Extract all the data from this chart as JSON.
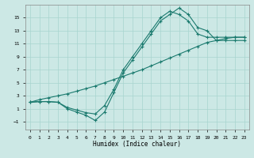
{
  "xlabel": "Humidex (Indice chaleur)",
  "xlim": [
    -0.5,
    23.5
  ],
  "ylim": [
    -2.2,
    17.0
  ],
  "xticks": [
    0,
    1,
    2,
    3,
    4,
    5,
    6,
    7,
    8,
    9,
    10,
    11,
    12,
    13,
    14,
    15,
    16,
    17,
    18,
    19,
    20,
    21,
    22,
    23
  ],
  "yticks": [
    -1,
    1,
    3,
    5,
    7,
    9,
    11,
    13,
    15
  ],
  "bg_color": "#cce8e5",
  "grid_color": "#a8d4cf",
  "line_color": "#1a7a6e",
  "line1_x": [
    0,
    1,
    2,
    3,
    4,
    5,
    6,
    7,
    8,
    9,
    10,
    11,
    12,
    13,
    14,
    15,
    16,
    17,
    18,
    19,
    20,
    21,
    22,
    23
  ],
  "line1_y": [
    2.0,
    2.1,
    2.1,
    2.0,
    1.0,
    0.5,
    0.0,
    -0.8,
    0.5,
    3.5,
    6.5,
    8.5,
    10.5,
    12.5,
    14.5,
    15.5,
    16.5,
    15.5,
    13.5,
    13.0,
    11.5,
    11.5,
    11.5,
    11.5
  ],
  "line2_x": [
    0,
    1,
    2,
    3,
    4,
    5,
    6,
    7,
    8,
    9,
    10,
    11,
    12,
    13,
    14,
    15,
    16,
    17,
    18,
    19,
    20,
    21,
    22,
    23
  ],
  "line2_y": [
    2.0,
    2.1,
    2.1,
    2.0,
    1.2,
    0.8,
    0.4,
    0.2,
    1.5,
    4.0,
    7.0,
    9.0,
    11.0,
    13.0,
    15.0,
    16.0,
    15.5,
    14.5,
    12.5,
    12.0,
    12.0,
    12.0,
    12.0,
    12.0
  ],
  "line3_x": [
    0,
    1,
    2,
    3,
    4,
    5,
    6,
    7,
    8,
    9,
    10,
    11,
    12,
    13,
    14,
    15,
    16,
    17,
    18,
    19,
    20,
    21,
    22,
    23
  ],
  "line3_y": [
    2.0,
    2.4,
    2.7,
    3.0,
    3.3,
    3.7,
    4.1,
    4.5,
    5.0,
    5.5,
    6.0,
    6.5,
    7.0,
    7.6,
    8.2,
    8.8,
    9.4,
    10.0,
    10.6,
    11.2,
    11.5,
    11.8,
    12.0,
    12.0
  ]
}
